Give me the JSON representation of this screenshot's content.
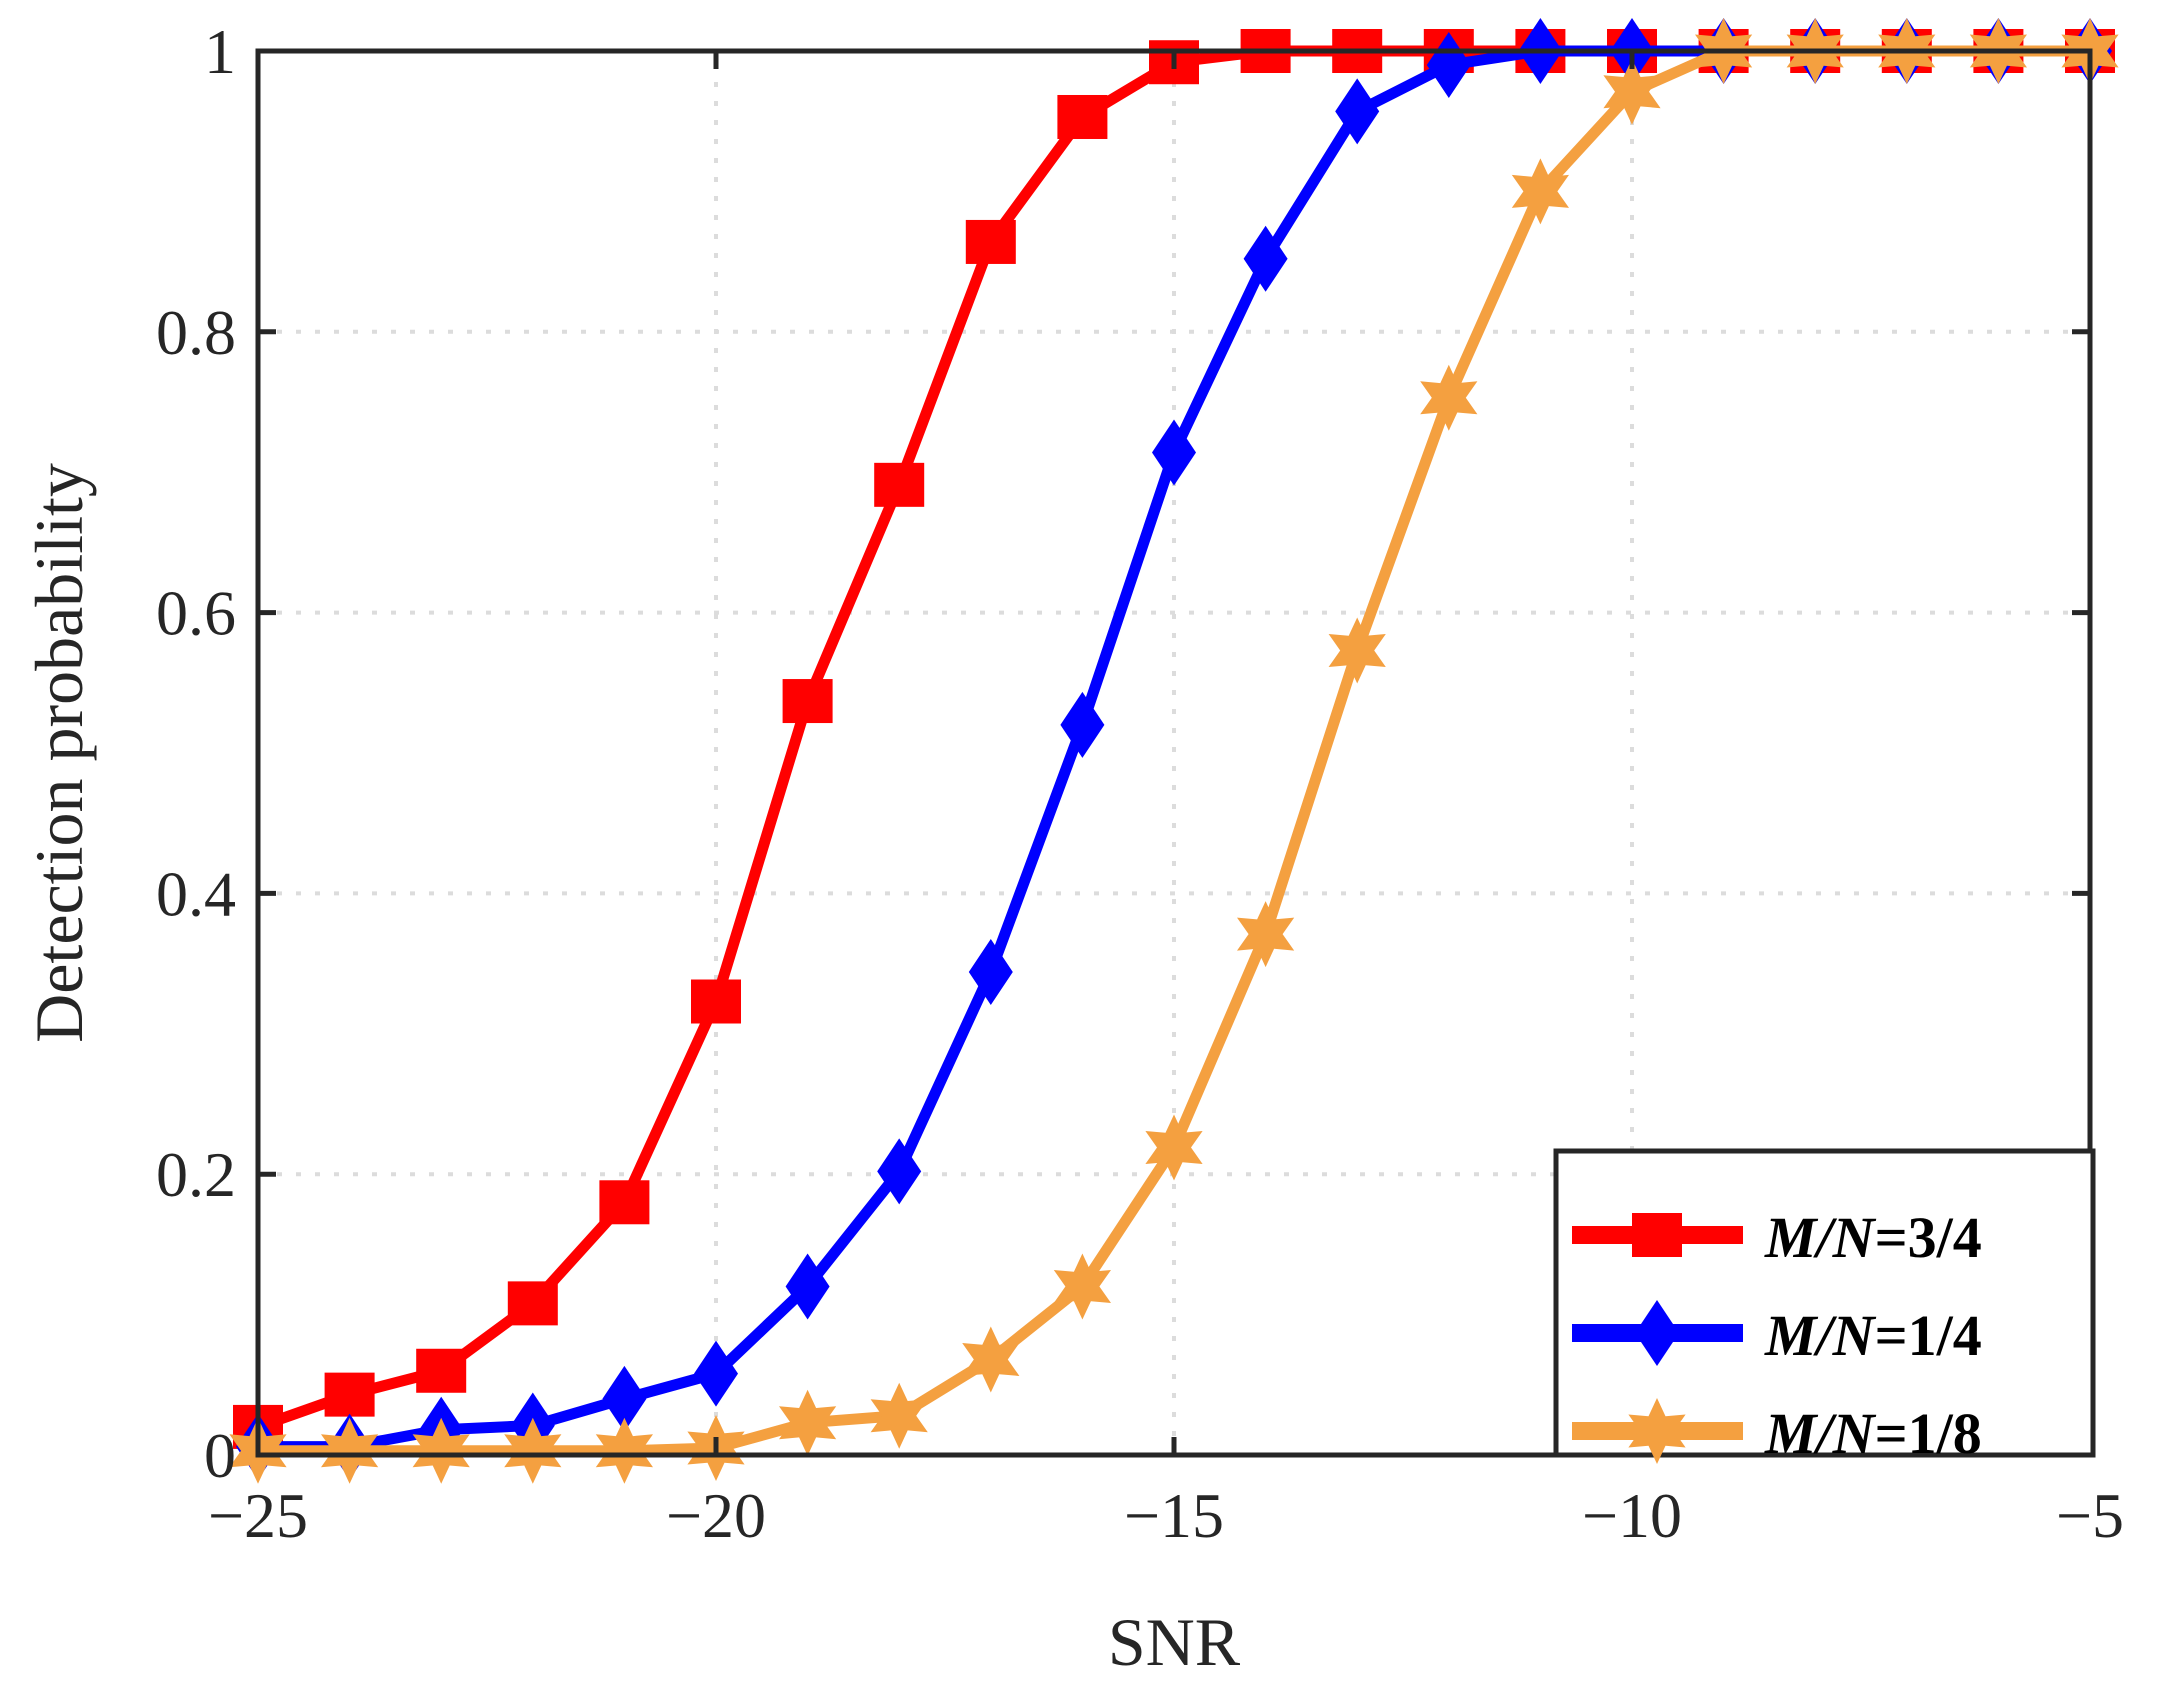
{
  "chart_data": {
    "type": "line",
    "xlabel": "SNR",
    "ylabel": "Detection probability",
    "xlim": [
      -25,
      -5
    ],
    "ylim": [
      0,
      1
    ],
    "xticks": [
      -25,
      -20,
      -15,
      -10,
      -5
    ],
    "xtick_labels": [
      "−25",
      "−20",
      "−15",
      "−10",
      "−5"
    ],
    "yticks": [
      0,
      0.2,
      0.4,
      0.6,
      0.8,
      1
    ],
    "ytick_labels": [
      "0",
      "0.2",
      "0.4",
      "0.6",
      "0.8",
      "1"
    ],
    "grid": true,
    "legend_position": "bottom-right",
    "x": [
      -25,
      -24,
      -23,
      -22,
      -21,
      -20,
      -19,
      -18,
      -17,
      -16,
      -15,
      -14,
      -13,
      -12,
      -11,
      -10,
      -9,
      -8,
      -7,
      -6,
      -5
    ],
    "series": [
      {
        "name": "M/N=3/4",
        "name_italic": "M/N",
        "name_rest": "=3/4",
        "color": "#ff0000",
        "marker": "square",
        "values": [
          0.02,
          0.043,
          0.06,
          0.108,
          0.18,
          0.323,
          0.537,
          0.691,
          0.864,
          0.953,
          0.992,
          1,
          1,
          1,
          1,
          1,
          1,
          1,
          1,
          1,
          1
        ]
      },
      {
        "name": "M/N=1/4",
        "name_italic": "M/N",
        "name_rest": "=1/4",
        "color": "#0000ff",
        "marker": "diamond",
        "values": [
          0.006,
          0.006,
          0.018,
          0.021,
          0.04,
          0.058,
          0.12,
          0.202,
          0.344,
          0.52,
          0.714,
          0.852,
          0.957,
          0.99,
          1,
          1,
          1,
          1,
          1,
          1,
          1
        ]
      },
      {
        "name": "M/N=1/8",
        "name_italic": "M/N",
        "name_rest": "=1/8",
        "color": "#f4a040",
        "marker": "hexagram",
        "values": [
          0.003,
          0.003,
          0.003,
          0.003,
          0.003,
          0.005,
          0.023,
          0.028,
          0.068,
          0.12,
          0.219,
          0.371,
          0.573,
          0.753,
          0.9,
          0.971,
          1,
          1,
          1,
          1,
          1
        ]
      }
    ]
  }
}
